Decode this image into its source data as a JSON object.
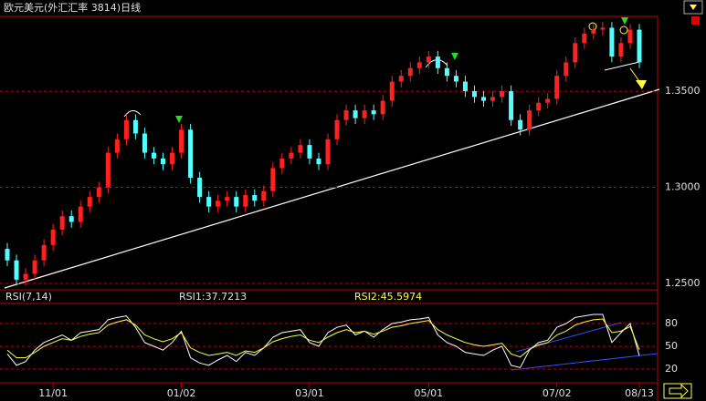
{
  "chart_data": {
    "type": "candlestick",
    "title": "欧元美元(外汇汇率 3814)日线",
    "categories": [
      null,
      null,
      null,
      null,
      null,
      "11/01",
      null,
      null,
      null,
      null,
      null,
      null,
      null,
      null,
      null,
      null,
      null,
      null,
      null,
      "01/02",
      null,
      null,
      null,
      null,
      null,
      null,
      null,
      null,
      null,
      null,
      null,
      null,
      null,
      "03/01",
      null,
      null,
      null,
      null,
      null,
      null,
      null,
      null,
      null,
      null,
      null,
      null,
      "05/01",
      null,
      null,
      null,
      null,
      null,
      null,
      null,
      null,
      null,
      null,
      null,
      null,
      null,
      "07/02",
      null,
      null,
      null,
      null,
      null,
      null,
      null,
      null,
      "08/13"
    ],
    "up_color": "#ff2020",
    "down_color": "#54ffff",
    "ohlc": [
      [
        1.268,
        1.271,
        1.259,
        1.262
      ],
      [
        1.262,
        1.265,
        1.249,
        1.252
      ],
      [
        1.252,
        1.258,
        1.249,
        1.255
      ],
      [
        1.255,
        1.265,
        1.252,
        1.262
      ],
      [
        1.262,
        1.273,
        1.259,
        1.27
      ],
      [
        1.27,
        1.281,
        1.267,
        1.278
      ],
      [
        1.278,
        1.288,
        1.275,
        1.285
      ],
      [
        1.285,
        1.288,
        1.279,
        1.282
      ],
      [
        1.282,
        1.293,
        1.279,
        1.29
      ],
      [
        1.29,
        1.298,
        1.287,
        1.295
      ],
      [
        1.295,
        1.303,
        1.292,
        1.3
      ],
      [
        1.3,
        1.321,
        1.297,
        1.318
      ],
      [
        1.318,
        1.328,
        1.315,
        1.325
      ],
      [
        1.325,
        1.338,
        1.322,
        1.335
      ],
      [
        1.335,
        1.338,
        1.325,
        1.328
      ],
      [
        1.328,
        1.331,
        1.315,
        1.318
      ],
      [
        1.318,
        1.321,
        1.312,
        1.315
      ],
      [
        1.315,
        1.318,
        1.309,
        1.312
      ],
      [
        1.312,
        1.321,
        1.309,
        1.318
      ],
      [
        1.318,
        1.333,
        1.315,
        1.33
      ],
      [
        1.33,
        1.333,
        1.302,
        1.305
      ],
      [
        1.305,
        1.308,
        1.292,
        1.295
      ],
      [
        1.295,
        1.298,
        1.287,
        1.29
      ],
      [
        1.29,
        1.296,
        1.287,
        1.293
      ],
      [
        1.293,
        1.298,
        1.29,
        1.295
      ],
      [
        1.295,
        1.298,
        1.287,
        1.29
      ],
      [
        1.29,
        1.299,
        1.287,
        1.296
      ],
      [
        1.296,
        1.299,
        1.29,
        1.293
      ],
      [
        1.293,
        1.301,
        1.29,
        1.298
      ],
      [
        1.298,
        1.313,
        1.295,
        1.31
      ],
      [
        1.31,
        1.318,
        1.307,
        1.315
      ],
      [
        1.315,
        1.321,
        1.312,
        1.318
      ],
      [
        1.318,
        1.325,
        1.315,
        1.322
      ],
      [
        1.322,
        1.325,
        1.312,
        1.315
      ],
      [
        1.315,
        1.318,
        1.309,
        1.312
      ],
      [
        1.312,
        1.328,
        1.309,
        1.325
      ],
      [
        1.325,
        1.338,
        1.322,
        1.335
      ],
      [
        1.335,
        1.343,
        1.332,
        1.34
      ],
      [
        1.34,
        1.343,
        1.333,
        1.336
      ],
      [
        1.336,
        1.343,
        1.333,
        1.34
      ],
      [
        1.34,
        1.343,
        1.335,
        1.338
      ],
      [
        1.338,
        1.348,
        1.335,
        1.345
      ],
      [
        1.345,
        1.358,
        1.342,
        1.355
      ],
      [
        1.355,
        1.361,
        1.352,
        1.358
      ],
      [
        1.358,
        1.365,
        1.355,
        1.362
      ],
      [
        1.362,
        1.368,
        1.359,
        1.365
      ],
      [
        1.365,
        1.371,
        1.362,
        1.368
      ],
      [
        1.368,
        1.371,
        1.359,
        1.362
      ],
      [
        1.362,
        1.365,
        1.355,
        1.358
      ],
      [
        1.358,
        1.361,
        1.352,
        1.355
      ],
      [
        1.355,
        1.358,
        1.347,
        1.35
      ],
      [
        1.35,
        1.353,
        1.344,
        1.347
      ],
      [
        1.347,
        1.35,
        1.342,
        1.345
      ],
      [
        1.345,
        1.35,
        1.342,
        1.347
      ],
      [
        1.347,
        1.353,
        1.344,
        1.35
      ],
      [
        1.35,
        1.353,
        1.332,
        1.335
      ],
      [
        1.335,
        1.338,
        1.327,
        1.33
      ],
      [
        1.33,
        1.343,
        1.327,
        1.34
      ],
      [
        1.34,
        1.347,
        1.337,
        1.344
      ],
      [
        1.344,
        1.349,
        1.341,
        1.346
      ],
      [
        1.346,
        1.361,
        1.343,
        1.358
      ],
      [
        1.358,
        1.368,
        1.355,
        1.365
      ],
      [
        1.365,
        1.378,
        1.362,
        1.375
      ],
      [
        1.375,
        1.383,
        1.372,
        1.38
      ],
      [
        1.38,
        1.385,
        1.377,
        1.382
      ],
      [
        1.382,
        1.386,
        1.379,
        1.383
      ],
      [
        1.383,
        1.386,
        1.365,
        1.368
      ],
      [
        1.368,
        1.378,
        1.365,
        1.375
      ],
      [
        1.375,
        1.385,
        1.372,
        1.382
      ],
      [
        1.382,
        1.385,
        1.362,
        1.365
      ]
    ],
    "ylim": [
      1.2467,
      1.3889
    ],
    "yticks": [
      {
        "value": 1.25,
        "label": "1.2500"
      },
      {
        "value": 1.3,
        "label": "1.3000"
      },
      {
        "value": 1.35,
        "label": "1.3500"
      }
    ],
    "grid": true,
    "grid_color": "#c00000",
    "indicator": {
      "title": "RSI(7,14)",
      "ylim": [
        2,
        106.4
      ],
      "yticks": [
        20,
        50,
        80
      ],
      "series": [
        {
          "name": "RSI1:37.7213",
          "color": "#ffffff",
          "values": [
            40,
            25,
            30,
            45,
            55,
            60,
            65,
            58,
            68,
            70,
            72,
            85,
            88,
            90,
            75,
            55,
            50,
            45,
            55,
            70,
            35,
            28,
            25,
            32,
            38,
            30,
            42,
            38,
            48,
            62,
            68,
            70,
            72,
            55,
            50,
            68,
            75,
            78,
            65,
            70,
            62,
            72,
            80,
            82,
            85,
            86,
            88,
            65,
            55,
            50,
            42,
            40,
            38,
            45,
            50,
            25,
            22,
            45,
            55,
            58,
            75,
            80,
            88,
            90,
            92,
            92,
            55,
            68,
            80,
            37.7213
          ]
        },
        {
          "name": "RSI2:45.5974",
          "color": "#ffff40",
          "values": [
            45,
            35,
            35,
            42,
            50,
            55,
            60,
            58,
            63,
            66,
            68,
            78,
            82,
            85,
            78,
            65,
            60,
            56,
            60,
            68,
            48,
            42,
            38,
            40,
            42,
            38,
            44,
            42,
            48,
            56,
            60,
            63,
            65,
            58,
            55,
            62,
            68,
            72,
            68,
            70,
            66,
            70,
            75,
            77,
            80,
            82,
            84,
            72,
            65,
            60,
            55,
            52,
            50,
            52,
            54,
            40,
            36,
            46,
            52,
            55,
            65,
            70,
            78,
            82,
            85,
            86,
            68,
            70,
            76,
            45.5974
          ]
        }
      ]
    }
  }
}
